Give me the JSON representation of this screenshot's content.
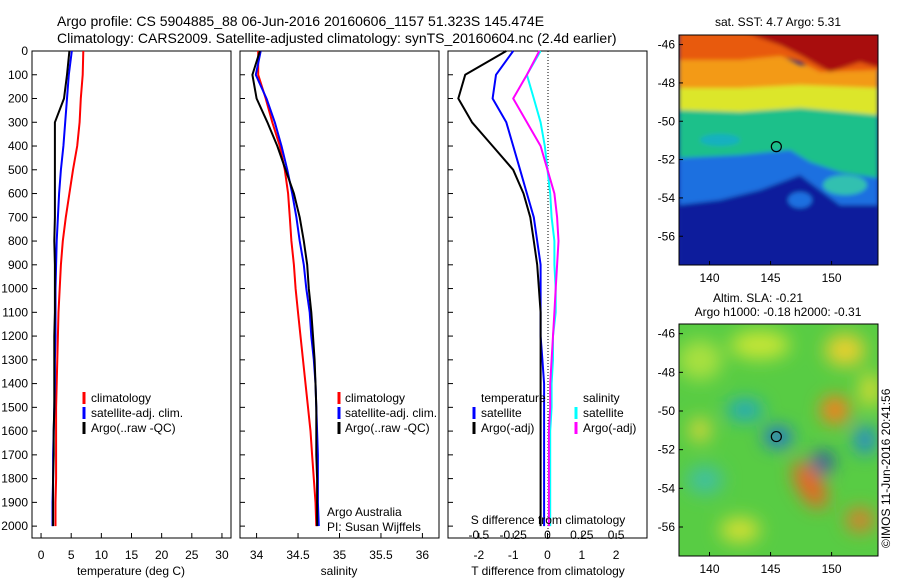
{
  "header": {
    "line1": "Argo profile: CS 5904885_88 06-Jun-2016 20160606_1157 51.323S 145.474E",
    "line2": "Climatology: CARS2009. Satellite-adjusted climatology: synTS_20160604.nc (2.4d earlier)"
  },
  "colors": {
    "climatology": "#ff0000",
    "satellite": "#0000ff",
    "argo": "#000000",
    "sal_satellite": "#00ffff",
    "sal_argo": "#ff00ff"
  },
  "credit": "©IMOS 11-Jun-2016 20:41:56",
  "chart_data": [
    {
      "type": "line",
      "id": "temperature",
      "xlabel": "temperature (deg C)",
      "ylabel": "",
      "xlim": [
        -1.5,
        31.5
      ],
      "ylim": [
        2050,
        0
      ],
      "xticks": [
        0,
        5,
        10,
        15,
        20,
        25,
        30
      ],
      "yticks": [
        0,
        100,
        200,
        300,
        400,
        500,
        600,
        700,
        800,
        900,
        1000,
        1100,
        1200,
        1300,
        1400,
        1500,
        1600,
        1700,
        1800,
        1900,
        2000
      ],
      "series": [
        {
          "name": "climatology",
          "color": "#ff0000",
          "x": [
            7.0,
            6.9,
            6.6,
            6.4,
            6.0,
            5.3,
            4.7,
            4.1,
            3.6,
            3.3,
            3.1,
            2.9,
            2.8,
            2.7,
            2.6,
            2.5,
            2.5,
            2.5,
            2.5,
            2.4,
            2.4
          ],
          "y": [
            0,
            100,
            200,
            300,
            400,
            500,
            600,
            700,
            800,
            900,
            1000,
            1100,
            1200,
            1300,
            1400,
            1500,
            1600,
            1700,
            1800,
            1900,
            2000
          ]
        },
        {
          "name": "satellite-adj. clim.",
          "color": "#0000ff",
          "x": [
            5.1,
            4.6,
            4.3,
            4.0,
            3.7,
            3.3,
            3.0,
            2.8,
            2.6,
            2.5,
            2.4,
            2.4,
            2.4,
            2.3,
            2.3,
            2.2,
            2.1,
            2.0,
            2.0,
            1.9,
            1.9
          ],
          "y": [
            0,
            100,
            200,
            300,
            400,
            500,
            600,
            700,
            800,
            900,
            1000,
            1100,
            1200,
            1300,
            1400,
            1500,
            1600,
            1700,
            1800,
            1900,
            2000
          ]
        },
        {
          "name": "Argo(..raw -QC)",
          "color": "#000000",
          "x": [
            4.7,
            4.3,
            3.8,
            2.3,
            2.3,
            2.3,
            2.3,
            2.3,
            2.2,
            2.3,
            2.3,
            2.3,
            2.2,
            2.2,
            2.2,
            2.2,
            2.1,
            2.1,
            2.0,
            2.0,
            2.0
          ],
          "y": [
            0,
            100,
            200,
            300,
            400,
            500,
            600,
            700,
            800,
            900,
            1000,
            1100,
            1200,
            1300,
            1400,
            1500,
            1600,
            1700,
            1800,
            1900,
            2000
          ]
        }
      ],
      "legend": [
        "climatology",
        "satellite-adj. clim.",
        "Argo(..raw -QC)"
      ]
    },
    {
      "type": "line",
      "id": "salinity",
      "xlabel": "salinity",
      "xlim": [
        33.8,
        36.2
      ],
      "ylim": [
        2050,
        0
      ],
      "xticks": [
        34,
        34.5,
        35,
        35.5,
        36
      ],
      "series": [
        {
          "name": "climatology",
          "color": "#ff0000",
          "x": [
            34.02,
            34.02,
            34.11,
            34.19,
            34.28,
            34.34,
            34.38,
            34.4,
            34.42,
            34.45,
            34.47,
            34.5,
            34.53,
            34.56,
            34.59,
            34.62,
            34.65,
            34.67,
            34.69,
            34.71,
            34.72
          ],
          "y": [
            0,
            100,
            200,
            300,
            400,
            500,
            600,
            700,
            800,
            900,
            1000,
            1100,
            1200,
            1300,
            1400,
            1500,
            1600,
            1700,
            1800,
            1900,
            2000
          ]
        },
        {
          "name": "satellite-adj. clim.",
          "color": "#0000ff",
          "x": [
            34.05,
            33.99,
            34.12,
            34.22,
            34.3,
            34.37,
            34.43,
            34.48,
            34.52,
            34.57,
            34.6,
            34.64,
            34.66,
            34.69,
            34.71,
            34.72,
            34.73,
            34.74,
            34.74,
            34.74,
            34.75
          ],
          "y": [
            0,
            100,
            200,
            300,
            400,
            500,
            600,
            700,
            800,
            900,
            1000,
            1100,
            1200,
            1300,
            1400,
            1500,
            1600,
            1700,
            1800,
            1900,
            2000
          ]
        },
        {
          "name": "Argo(..raw -QC)",
          "color": "#000000",
          "x": [
            34.04,
            33.95,
            34.0,
            34.13,
            34.25,
            34.35,
            34.45,
            34.52,
            34.57,
            34.61,
            34.63,
            34.66,
            34.68,
            34.7,
            34.71,
            34.72,
            34.72,
            34.72,
            34.73,
            34.73,
            34.73
          ],
          "y": [
            0,
            100,
            200,
            300,
            400,
            500,
            600,
            700,
            800,
            900,
            1000,
            1100,
            1200,
            1300,
            1400,
            1500,
            1600,
            1700,
            1800,
            1900,
            2000
          ]
        }
      ],
      "legend": [
        "climatology",
        "satellite-adj. clim.",
        "Argo(..raw -QC)"
      ],
      "annotation": [
        "Argo Australia",
        "PI: Susan Wijffels"
      ]
    },
    {
      "type": "line",
      "id": "difference",
      "xlabel": "T difference from climatology",
      "top_label": "S difference from climatology",
      "xlim": [
        -2.9,
        2.9
      ],
      "ylim": [
        2050,
        0
      ],
      "xticks": [
        -2,
        -1,
        0,
        1,
        2
      ],
      "s_xlim": [
        -0.725,
        0.725
      ],
      "s_xticks": [
        -0.5,
        -0.25,
        0,
        0.25,
        0.5
      ],
      "s_xtick_labels": [
        "-0.5",
        "-0.25",
        "0",
        "0.25",
        "0.5"
      ],
      "temperature_series": [
        {
          "name": "satellite",
          "color": "#0000ff",
          "x": [
            -1.0,
            -1.5,
            -1.6,
            -1.2,
            -1.0,
            -0.8,
            -0.6,
            -0.4,
            -0.3,
            -0.2,
            -0.2,
            -0.2,
            -0.2,
            -0.15,
            -0.1,
            -0.1,
            -0.1,
            -0.1,
            -0.1,
            -0.1,
            -0.1
          ],
          "y": [
            0,
            100,
            200,
            300,
            400,
            500,
            600,
            700,
            800,
            900,
            1000,
            1100,
            1200,
            1300,
            1400,
            1500,
            1600,
            1700,
            1800,
            1900,
            2000
          ]
        },
        {
          "name": "Argo(-adj)",
          "color": "#000000",
          "x": [
            -1.2,
            -2.4,
            -2.6,
            -2.2,
            -1.6,
            -1.0,
            -0.7,
            -0.5,
            -0.4,
            -0.3,
            -0.25,
            -0.2,
            -0.2,
            -0.2,
            -0.2,
            -0.2,
            -0.2,
            -0.2,
            -0.2,
            -0.2,
            -0.2
          ],
          "y": [
            0,
            100,
            200,
            300,
            400,
            500,
            600,
            700,
            800,
            900,
            1000,
            1100,
            1200,
            1300,
            1400,
            1500,
            1600,
            1700,
            1800,
            1900,
            2000
          ]
        }
      ],
      "salinity_series": [
        {
          "name": "satellite",
          "color": "#00ffff",
          "x": [
            -0.05,
            -0.15,
            -0.1,
            -0.05,
            -0.02,
            0.0,
            0.02,
            0.03,
            0.05,
            0.05,
            0.06,
            0.06,
            0.04,
            0.04,
            0.03,
            0.03,
            0.02,
            0.02,
            0.02,
            0.02,
            0.02
          ],
          "y": [
            0,
            100,
            200,
            300,
            400,
            500,
            600,
            700,
            800,
            900,
            1000,
            1100,
            1200,
            1300,
            1400,
            1500,
            1600,
            1700,
            1800,
            1900,
            2000
          ]
        },
        {
          "name": "Argo(-adj)",
          "color": "#ff00ff",
          "x": [
            -0.06,
            -0.15,
            -0.25,
            -0.15,
            -0.05,
            0.0,
            0.05,
            0.07,
            0.08,
            0.07,
            0.06,
            0.05,
            0.04,
            0.03,
            0.02,
            0.02,
            0.01,
            0.01,
            0.01,
            0.01,
            0.01
          ],
          "y": [
            0,
            100,
            200,
            300,
            400,
            500,
            600,
            700,
            800,
            900,
            1000,
            1100,
            1200,
            1300,
            1400,
            1500,
            1600,
            1700,
            1800,
            1900,
            2000
          ]
        }
      ],
      "legend_titles": [
        "temperature",
        "salinity"
      ],
      "legend": [
        "satellite",
        "Argo(-adj)"
      ]
    },
    {
      "type": "heatmap",
      "id": "sst_map",
      "title": "sat. SST: 4.7 Argo: 5.31",
      "xlim": [
        137.5,
        153.8
      ],
      "ylim": [
        -57.5,
        -45.5
      ],
      "xticks": [
        140,
        145,
        150
      ],
      "yticks": [
        -46,
        -48,
        -50,
        -52,
        -54,
        -56
      ],
      "marker": {
        "lon": 145.474,
        "lat": -51.323
      }
    },
    {
      "type": "heatmap",
      "id": "sla_map",
      "title_lines": [
        "Altim. SLA: -0.21",
        "Argo h1000: -0.18 h2000: -0.31"
      ],
      "xlim": [
        137.5,
        153.8
      ],
      "ylim": [
        -57.5,
        -45.5
      ],
      "xticks": [
        140,
        145,
        150
      ],
      "yticks": [
        -46,
        -48,
        -50,
        -52,
        -54,
        -56
      ],
      "marker": {
        "lon": 145.474,
        "lat": -51.323
      }
    }
  ]
}
